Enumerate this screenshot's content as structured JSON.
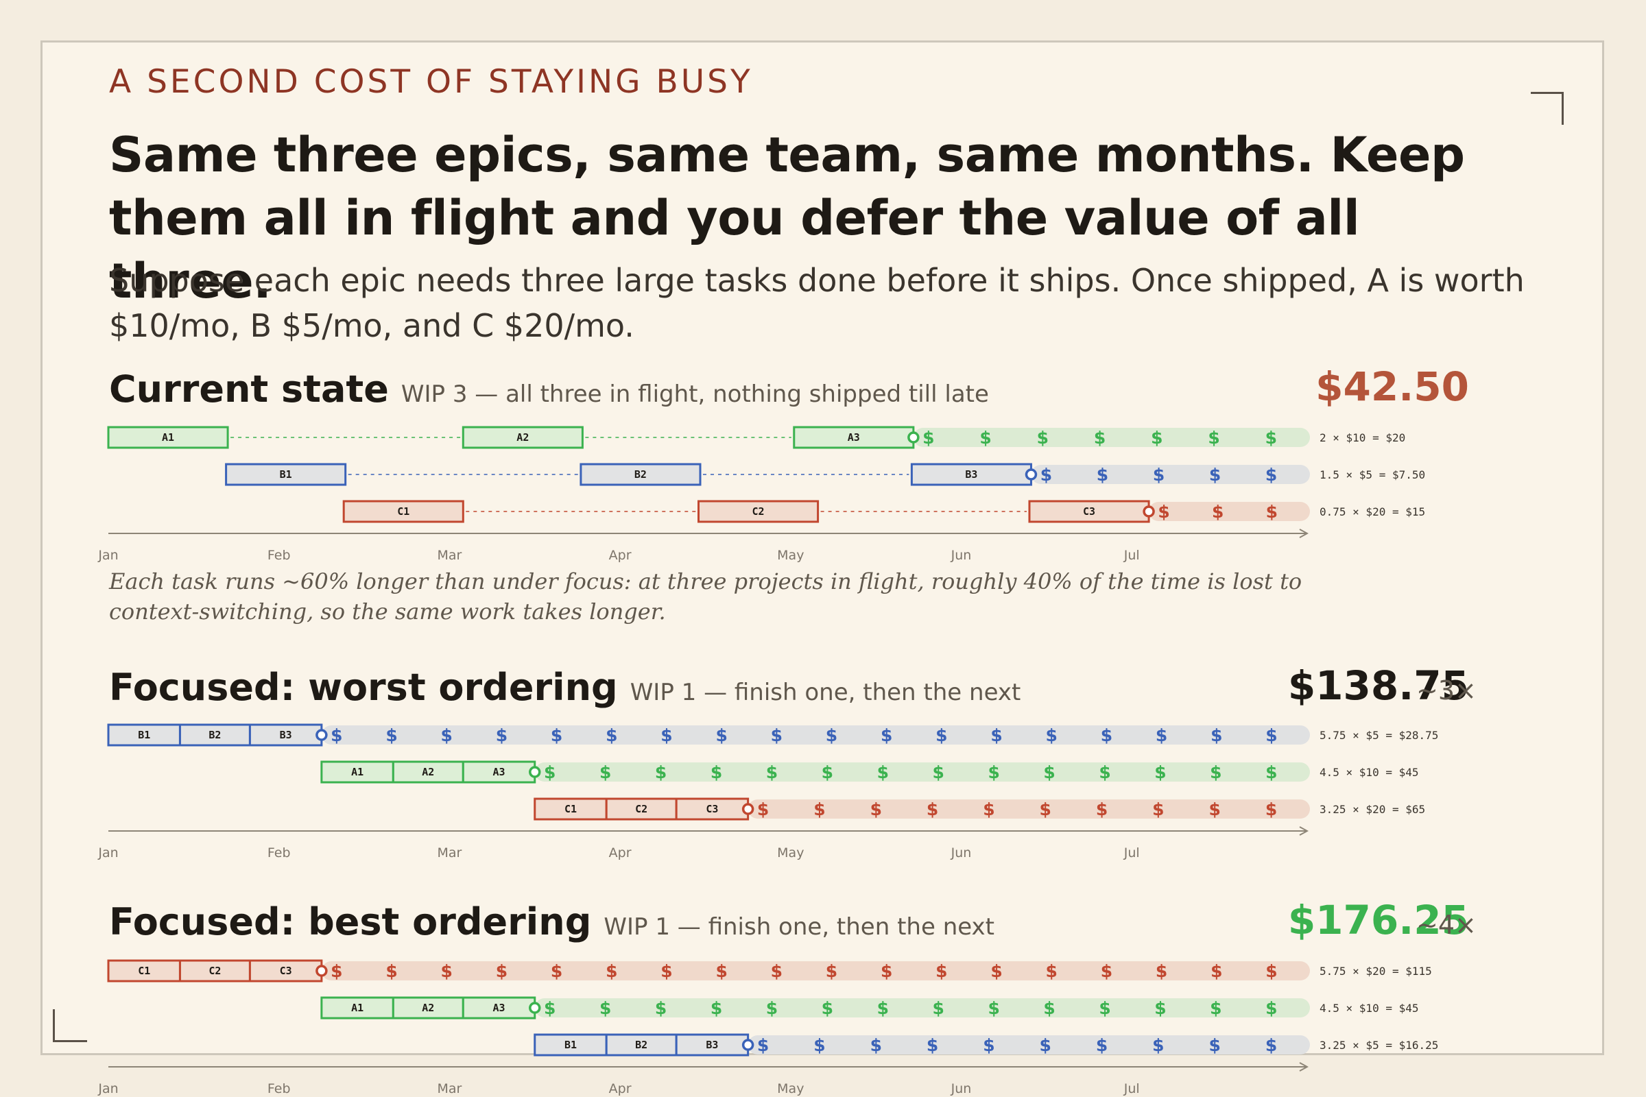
{
  "header": {
    "eyebrow": "A SECOND COST OF STAYING BUSY",
    "headline": "Same three epics, same team, same months. Keep them all in flight and you defer the value of all three.",
    "lede": "Suppose each epic needs three large tasks done before it ships. Once shipped, A is worth $10/mo, B $5/mo, and C $20/mo."
  },
  "colors": {
    "A": {
      "stroke": "#3bb24f",
      "fill": "#ddefd6",
      "track": "#dcebd3",
      "dollar": "#3bb24f"
    },
    "B": {
      "stroke": "#3a62b8",
      "fill": "#e2e3e4",
      "track": "#e0e1e2",
      "dollar": "#3a62b8"
    },
    "C": {
      "stroke": "#c1472f",
      "fill": "#f2dccf",
      "track": "#f0d9cb",
      "dollar": "#c1472f"
    },
    "total_current": "#b4553a",
    "total_worst": "#1e1a15",
    "total_best": "#3bb24f"
  },
  "months": [
    "Jan",
    "Feb",
    "Mar",
    "Apr",
    "May",
    "Jun",
    "Jul"
  ],
  "sections": [
    {
      "title": "Current state",
      "subtitle": "WIP 3 — all three in flight, nothing shipped till late",
      "total": "$42.50",
      "total_color_key": "total_current",
      "multiplier": "",
      "note": "Each task runs ~60% longer than under focus: at three projects in flight, roughly 40% of the time is lost to context-switching, so the same work takes longer.",
      "rows": [
        {
          "epic": "A",
          "tasks": [
            {
              "label": "A1",
              "start": 0,
              "end": 0.7
            },
            {
              "label": "A2",
              "start": 2.08,
              "end": 2.78
            },
            {
              "label": "A3",
              "start": 4.02,
              "end": 4.72
            }
          ],
          "ship": 4.72,
          "dollar_count": 7,
          "equation": "2 × $10 = $20"
        },
        {
          "epic": "B",
          "tasks": [
            {
              "label": "B1",
              "start": 0.69,
              "end": 1.39
            },
            {
              "label": "B2",
              "start": 2.77,
              "end": 3.47
            },
            {
              "label": "B3",
              "start": 4.71,
              "end": 5.41
            }
          ],
          "ship": 5.41,
          "dollar_count": 5,
          "equation": "1.5 × $5 = $7.50"
        },
        {
          "epic": "C",
          "tasks": [
            {
              "label": "C1",
              "start": 1.38,
              "end": 2.08
            },
            {
              "label": "C2",
              "start": 3.46,
              "end": 4.16
            },
            {
              "label": "C3",
              "start": 5.4,
              "end": 6.1
            }
          ],
          "ship": 6.1,
          "dollar_count": 3,
          "equation": "0.75 × $20 = $15"
        }
      ]
    },
    {
      "title": "Focused: worst ordering",
      "subtitle": "WIP 1 — finish one, then the next",
      "total": "$138.75",
      "total_color_key": "total_worst",
      "multiplier": "~3×",
      "rows": [
        {
          "epic": "B",
          "tasks": [
            {
              "label": "B1",
              "start": 0,
              "end": 0.42
            },
            {
              "label": "B2",
              "start": 0.42,
              "end": 0.83
            },
            {
              "label": "B3",
              "start": 0.83,
              "end": 1.25
            }
          ],
          "ship": 1.25,
          "dollar_count": 18,
          "equation": "5.75 × $5 = $28.75"
        },
        {
          "epic": "A",
          "tasks": [
            {
              "label": "A1",
              "start": 1.25,
              "end": 1.67
            },
            {
              "label": "A2",
              "start": 1.67,
              "end": 2.08
            },
            {
              "label": "A3",
              "start": 2.08,
              "end": 2.5
            }
          ],
          "ship": 2.5,
          "dollar_count": 14,
          "equation": "4.5 × $10 = $45"
        },
        {
          "epic": "C",
          "tasks": [
            {
              "label": "C1",
              "start": 2.5,
              "end": 2.92
            },
            {
              "label": "C2",
              "start": 2.92,
              "end": 3.33
            },
            {
              "label": "C3",
              "start": 3.33,
              "end": 3.75
            }
          ],
          "ship": 3.75,
          "dollar_count": 10,
          "equation": "3.25 × $20 = $65"
        }
      ]
    },
    {
      "title": "Focused: best ordering",
      "subtitle": "WIP 1 — finish one, then the next",
      "total": "$176.25",
      "total_color_key": "total_best",
      "multiplier": "~4×",
      "rows": [
        {
          "epic": "C",
          "tasks": [
            {
              "label": "C1",
              "start": 0,
              "end": 0.42
            },
            {
              "label": "C2",
              "start": 0.42,
              "end": 0.83
            },
            {
              "label": "C3",
              "start": 0.83,
              "end": 1.25
            }
          ],
          "ship": 1.25,
          "dollar_count": 18,
          "equation": "5.75 × $20 = $115"
        },
        {
          "epic": "A",
          "tasks": [
            {
              "label": "A1",
              "start": 1.25,
              "end": 1.67
            },
            {
              "label": "A2",
              "start": 1.67,
              "end": 2.08
            },
            {
              "label": "A3",
              "start": 2.08,
              "end": 2.5
            }
          ],
          "ship": 2.5,
          "dollar_count": 14,
          "equation": "4.5 × $10 = $45"
        },
        {
          "epic": "B",
          "tasks": [
            {
              "label": "B1",
              "start": 2.5,
              "end": 2.92
            },
            {
              "label": "B2",
              "start": 2.92,
              "end": 3.33
            },
            {
              "label": "B3",
              "start": 3.33,
              "end": 3.75
            }
          ],
          "ship": 3.75,
          "dollar_count": 10,
          "equation": "3.25 × $5 = $16.25"
        }
      ]
    }
  ]
}
